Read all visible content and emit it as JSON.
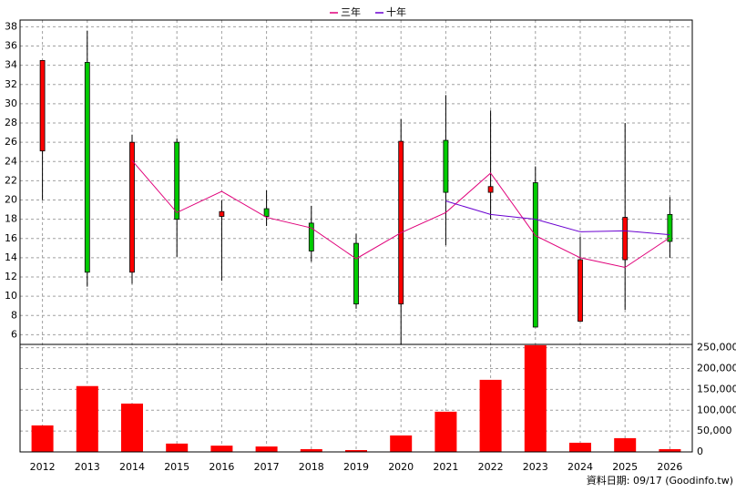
{
  "chart_data": {
    "type": "candlestick",
    "categories": [
      "2012",
      "2013",
      "2014",
      "2015",
      "2016",
      "2017",
      "2018",
      "2019",
      "2020",
      "2021",
      "2022",
      "2023",
      "2024",
      "2025",
      "2026"
    ],
    "open": [
      25.1,
      34.3,
      12.5,
      26.0,
      18.3,
      19.1,
      17.6,
      15.5,
      9.2,
      26.2,
      20.8,
      21.8,
      7.4,
      13.8,
      18.5
    ],
    "high": [
      34.5,
      37.6,
      26.8,
      26.4,
      20.0,
      21.0,
      19.4,
      16.5,
      28.4,
      30.9,
      29.3,
      23.5,
      16.2,
      28.0,
      20.3
    ],
    "low": [
      20.0,
      11.0,
      11.3,
      14.1,
      11.6,
      17.3,
      13.6,
      8.7,
      5.0,
      15.3,
      18.0,
      6.8,
      7.4,
      8.6,
      14.0
    ],
    "close": [
      34.5,
      12.5,
      26.0,
      18.0,
      18.8,
      18.3,
      14.7,
      9.2,
      26.1,
      20.8,
      21.4,
      6.8,
      13.8,
      18.2,
      15.7
    ],
    "up_color": "#ff0000",
    "down_color": "#00cc00",
    "ylim": [
      5,
      38.7
    ],
    "yticks": [
      6,
      8,
      10,
      12,
      14,
      16,
      18,
      20,
      22,
      24,
      26,
      28,
      30,
      32,
      34,
      36,
      38
    ],
    "grid": true,
    "series": [
      {
        "name": "三年",
        "color": "#e0007a",
        "values": [
          null,
          null,
          24.1,
          18.7,
          20.9,
          18.2,
          17.1,
          13.9,
          16.6,
          18.7,
          22.8,
          16.3,
          14.0,
          13.0,
          16.1
        ]
      },
      {
        "name": "十年",
        "color": "#6a00d0",
        "values": [
          null,
          null,
          null,
          null,
          null,
          null,
          null,
          null,
          null,
          19.9,
          18.5,
          18.0,
          16.7,
          16.8,
          16.4
        ]
      }
    ],
    "volume": {
      "color": "#ff0000",
      "values": [
        63600,
        158000,
        116000,
        20000,
        15000,
        13000,
        6600,
        4400,
        39500,
        96500,
        173000,
        256000,
        22000,
        33000,
        6600
      ],
      "ylim": [
        0,
        258000
      ],
      "yticks": [
        0,
        {
          "value": 50000,
          "label": "50,000"
        },
        {
          "value": 100000,
          "label": "100,000"
        },
        {
          "value": 150000,
          "label": "150,000"
        },
        {
          "value": 200000,
          "label": "200,000"
        },
        {
          "value": 250000,
          "label": "250,000"
        }
      ]
    },
    "footer": "資料日期: 09/17 (Goodinfo.tw)"
  }
}
